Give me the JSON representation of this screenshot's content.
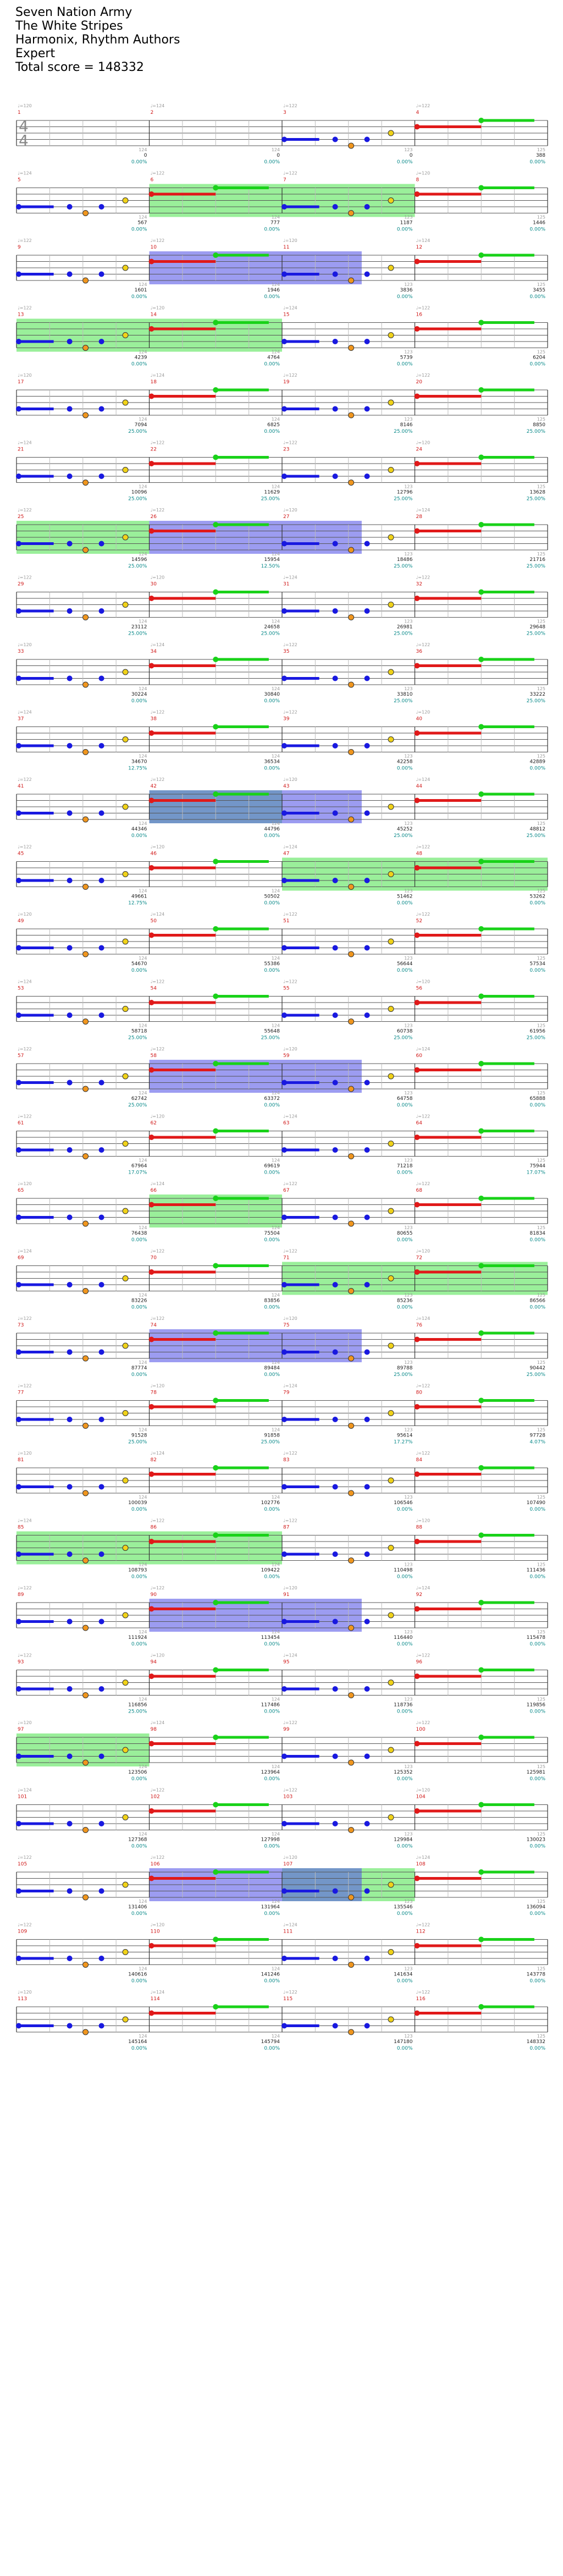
{
  "header": {
    "song": "Seven Nation Army",
    "artist": "The White Stripes",
    "charters": "Harmonix, Rhythm Authors",
    "difficulty": "Expert",
    "total_score": "Total score = 148332"
  },
  "chart_data": {
    "type": "path-chart",
    "time_signature": [
      "4",
      "4"
    ],
    "colors": {
      "green": "#19d219",
      "red": "#e01919",
      "yellow": "#f0d219",
      "blue": "#1919e0",
      "orange": "#f0961e",
      "open_bar": "#1919e0",
      "overdrive_phrase": "#6fe86f",
      "activation": "#5a5ae8",
      "activation_overlap": "#4f93b5",
      "measure_number": "#d01818",
      "score_color": "#202020",
      "percent_color": "#0a8a8a",
      "tempo_color": "#999999"
    },
    "measures_per_row": 4,
    "scores": [
      "0",
      "0",
      "0",
      "388",
      "567",
      "777",
      "1187",
      "1446",
      "1601",
      "1946",
      "3836",
      "3455",
      "4239",
      "4764",
      "5739",
      "6204",
      "7094",
      "6825",
      "8146",
      "8850",
      "10096",
      "11629",
      "12796",
      "13628",
      "14596",
      "15954",
      "18486",
      "21716",
      "23112",
      "24658",
      "26981",
      "29648",
      "30224",
      "30840",
      "33810",
      "33222",
      "34670",
      "36534",
      "42258",
      "42889",
      "44346",
      "44796",
      "45252",
      "48812",
      "49661",
      "50502",
      "51462",
      "53262",
      "54670",
      "55386",
      "56644",
      "57534",
      "58718",
      "55648",
      "60738",
      "61956",
      "62742",
      "63372",
      "64758",
      "65888",
      "67964",
      "69619",
      "71218",
      "75944",
      "76438",
      "75504",
      "80655",
      "81834",
      "83226",
      "83856",
      "85236",
      "86566",
      "87774",
      "89484",
      "89788",
      "90442",
      "91528",
      "91858",
      "95614",
      "97728",
      "100039",
      "102776",
      "106546",
      "107490",
      "108793",
      "109422",
      "110498",
      "111436",
      "111924",
      "113454",
      "116440",
      "115478",
      "116856",
      "117486",
      "118736",
      "119856",
      "123506",
      "123964",
      "125352",
      "125981",
      "127368",
      "127998",
      "129984",
      "130023",
      "131406",
      "131964",
      "135546",
      "136094",
      "140616",
      "141246",
      "141634",
      "143778",
      "145164",
      "145794",
      "147180",
      "148332"
    ],
    "percents": [
      "0.00%",
      "0.00%",
      "0.00%",
      "0.00%",
      "0.00%",
      "0.00%",
      "0.00%",
      "0.00%",
      "0.00%",
      "0.00%",
      "0.00%",
      "0.00%",
      "0.00%",
      "0.00%",
      "0.00%",
      "0.00%",
      "25.00%",
      "0.00%",
      "25.00%",
      "25.00%",
      "25.00%",
      "25.00%",
      "25.00%",
      "25.00%",
      "25.00%",
      "12.50%",
      "25.00%",
      "25.00%",
      "25.00%",
      "25.00%",
      "25.00%",
      "25.00%",
      "0.00%",
      "0.00%",
      "25.00%",
      "25.00%",
      "12.75%",
      "0.00%",
      "0.00%",
      "0.00%",
      "0.00%",
      "0.00%",
      "25.00%",
      "25.00%",
      "12.75%",
      "0.00%",
      "0.00%",
      "0.00%",
      "0.00%",
      "0.00%",
      "0.00%",
      "0.00%",
      "25.00%",
      "25.00%",
      "25.00%",
      "25.00%",
      "25.00%",
      "0.00%",
      "0.00%",
      "0.00%",
      "17.07%",
      "0.00%",
      "0.00%",
      "17.07%",
      "0.00%",
      "0.00%",
      "0.00%",
      "0.00%",
      "0.00%",
      "0.00%",
      "0.00%",
      "0.00%",
      "0.00%",
      "0.00%",
      "25.00%",
      "25.00%",
      "25.00%",
      "25.00%",
      "17.27%",
      "4.07%",
      "0.00%",
      "0.00%",
      "0.00%",
      "0.00%",
      "0.00%",
      "0.00%",
      "0.00%",
      "0.00%",
      "0.00%",
      "0.00%",
      "0.00%",
      "0.00%",
      "25.00%",
      "0.00%",
      "0.00%",
      "0.00%",
      "0.00%",
      "0.00%",
      "0.00%",
      "0.00%",
      "0.00%",
      "0.00%",
      "0.00%",
      "0.00%",
      "0.00%",
      "0.00%",
      "0.00%",
      "0.00%",
      "0.00%",
      "0.00%",
      "0.00%",
      "0.00%",
      "0.00%",
      "0.00%",
      "0.00%",
      "0.00%"
    ],
    "tempos": [
      "♩=120",
      "♩=124",
      "♩=122",
      "♩=122"
    ],
    "measure_tempos": [
      "124",
      "124",
      "123",
      "125"
    ]
  }
}
